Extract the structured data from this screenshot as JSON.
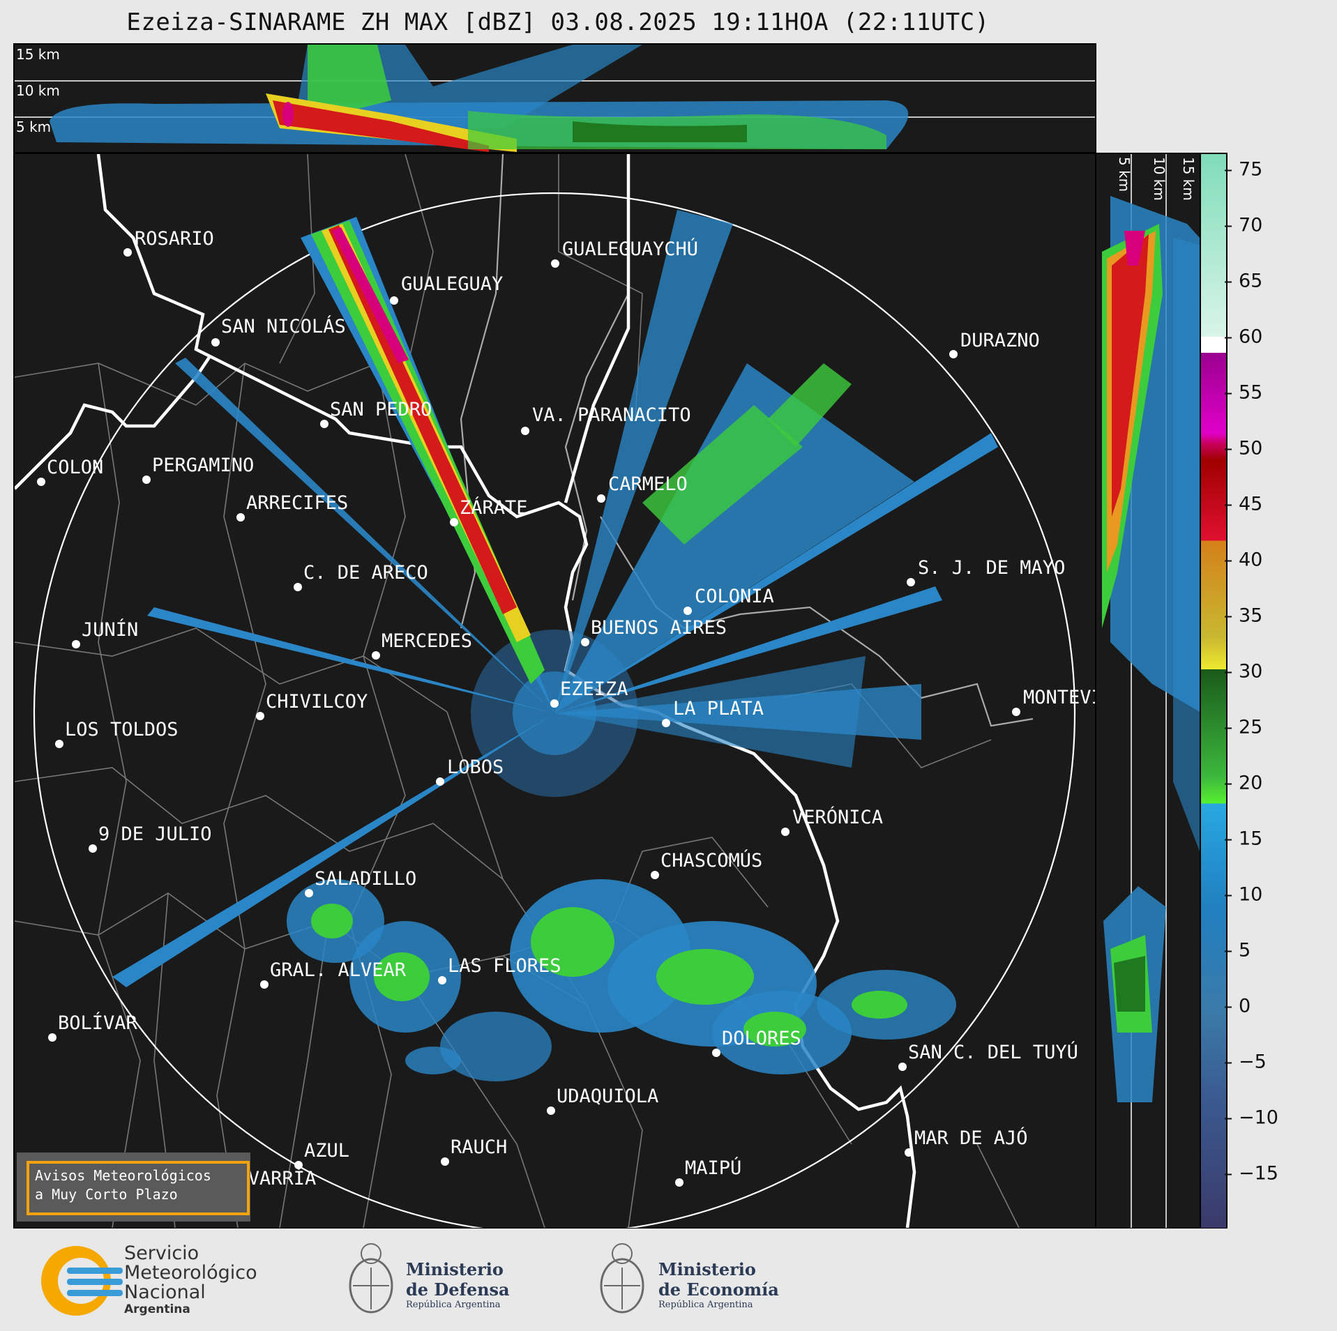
{
  "title": "Ezeiza-SINARAME ZH MAX [dBZ] 03.08.2025 19:11HOA (22:11UTC)",
  "top_panel": {
    "height_labels": [
      "15 km",
      "10 km",
      "5 km"
    ]
  },
  "side_panel": {
    "height_labels": [
      "5 km",
      "10 km",
      "15 km"
    ]
  },
  "colorbar": {
    "ticks": [
      "75",
      "70",
      "65",
      "60",
      "55",
      "50",
      "45",
      "40",
      "35",
      "30",
      "25",
      "20",
      "15",
      "10",
      "5",
      "0",
      "−5",
      "−10",
      "−15"
    ],
    "min": -20,
    "max": 77
  },
  "cities": [
    {
      "name": "ROSARIO"
    },
    {
      "name": "GUALEGUAYCHÚ"
    },
    {
      "name": "GUALEGUAY"
    },
    {
      "name": "SAN NICOLÁS"
    },
    {
      "name": "DURAZNO"
    },
    {
      "name": "SAN PEDRO"
    },
    {
      "name": "VA. PARANACITO"
    },
    {
      "name": "COLON"
    },
    {
      "name": "PERGAMINO"
    },
    {
      "name": "CARMELO"
    },
    {
      "name": "ARRECIFES"
    },
    {
      "name": "ZÁRATE"
    },
    {
      "name": "S. J. DE MAYO"
    },
    {
      "name": "C. DE ARECO"
    },
    {
      "name": "COLONIA"
    },
    {
      "name": "JUNÍN"
    },
    {
      "name": "BUENOS AIRES"
    },
    {
      "name": "MERCEDES"
    },
    {
      "name": "MONTEVIDEO"
    },
    {
      "name": "EZEIZA"
    },
    {
      "name": "CHIVILCOY"
    },
    {
      "name": "LA PLATA"
    },
    {
      "name": "LOS TOLDOS"
    },
    {
      "name": "LOBOS"
    },
    {
      "name": "VERÓNICA"
    },
    {
      "name": "9 DE JULIO"
    },
    {
      "name": "CHASCOMÚS"
    },
    {
      "name": "SALADILLO"
    },
    {
      "name": "GRAL. ALVEAR"
    },
    {
      "name": "LAS FLORES"
    },
    {
      "name": "BOLÍVAR"
    },
    {
      "name": "DOLORES"
    },
    {
      "name": "SAN C. DEL TUYÚ"
    },
    {
      "name": "UDAQUIOLA"
    },
    {
      "name": "MAR DE AJÓ"
    },
    {
      "name": "AZUL"
    },
    {
      "name": "RAUCH"
    },
    {
      "name": "MAIPÚ"
    },
    {
      "name": "OLAVARRÍA"
    }
  ],
  "warnings_box": {
    "line1": "Avisos Meteorológicos",
    "line2": "a Muy Corto Plazo"
  },
  "footer": {
    "smn_line1": "Servicio",
    "smn_line2": "Meteorológico",
    "smn_line3": "Nacional",
    "smn_line4": "Argentina",
    "defensa_line1": "Ministerio",
    "defensa_line2": "de Defensa",
    "defensa_line3": "República Argentina",
    "economia_line1": "Ministerio",
    "economia_line2": "de Economía",
    "economia_line3": "República Argentina"
  },
  "colors": {
    "panel_bg": "#1a1a1a",
    "warning_border": "#f2a20c",
    "smn_yellow": "#f5a800",
    "smn_blue": "#3a9bd9"
  }
}
